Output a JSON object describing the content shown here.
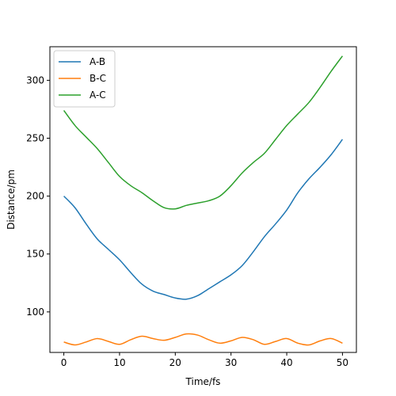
{
  "chart_data": {
    "type": "line",
    "title": "",
    "xlabel": "Time/fs",
    "ylabel": "Distance/pm",
    "xlim": [
      -2.5,
      52.5
    ],
    "ylim": [
      65,
      329
    ],
    "xticks": [
      0,
      10,
      20,
      30,
      40,
      50
    ],
    "yticks": [
      100,
      150,
      200,
      250,
      300
    ],
    "grid": false,
    "legend_position": "top-left",
    "x": [
      0,
      2,
      4,
      6,
      8,
      10,
      12,
      14,
      16,
      18,
      20,
      22,
      24,
      26,
      28,
      30,
      32,
      34,
      36,
      38,
      40,
      42,
      44,
      46,
      48,
      50
    ],
    "series": [
      {
        "name": "A-B",
        "color": "#1f77b4",
        "values": [
          200,
          190,
          176,
          163,
          154,
          145,
          134,
          124,
          118,
          115,
          112,
          111,
          114,
          120,
          126,
          132,
          140,
          152,
          165,
          176,
          188,
          203,
          215,
          225,
          236,
          249
        ]
      },
      {
        "name": "B-C",
        "color": "#ff7f0e",
        "values": [
          74,
          71.5,
          74,
          77,
          74.5,
          72,
          76,
          79,
          77,
          75.5,
          78,
          81,
          80,
          76,
          73,
          75,
          78,
          76,
          72,
          74.5,
          77,
          73,
          71.5,
          75,
          77,
          73
        ]
      },
      {
        "name": "A-C",
        "color": "#2ca02c",
        "values": [
          274,
          261,
          251,
          241,
          229,
          217,
          209,
          203,
          196,
          190,
          189,
          192,
          194,
          196,
          200,
          209,
          220,
          229,
          237,
          249,
          261,
          271,
          281,
          294,
          308,
          321
        ]
      }
    ]
  }
}
